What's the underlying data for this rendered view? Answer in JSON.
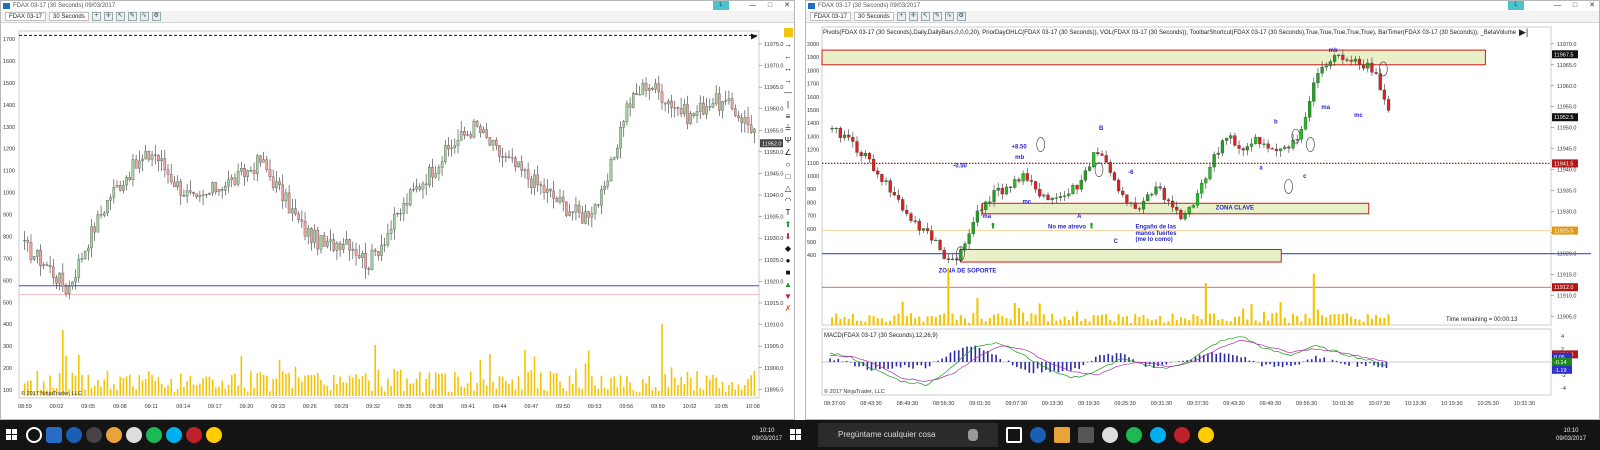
{
  "left_window": {
    "title": "FDAX 03-17 (30 Seconds)  09/03/2017",
    "tab_tag": "L",
    "instrument": "FDAX 03-17",
    "period": "30 Seconds",
    "copyright": "© 2017 NinjaTrader, LLC",
    "left_axis": [
      "1700",
      "1600",
      "1500",
      "1400",
      "1300",
      "1200",
      "1100",
      "1000",
      "900",
      "800",
      "700",
      "600",
      "500",
      "400",
      "300",
      "200",
      "100"
    ],
    "price_axis": [
      "11975.0",
      "11970.0",
      "11965.0",
      "11960.0",
      "11955.0",
      "11950.0",
      "11945.0",
      "11940.0",
      "11935.0",
      "11930.0",
      "11925.0",
      "11920.0",
      "11915.0",
      "11910.0",
      "11905.0",
      "11900.0",
      "11895.0"
    ],
    "time_axis": [
      "08:59",
      "09:02",
      "09:05",
      "09:08",
      "09:11",
      "09:14",
      "09:17",
      "09:20",
      "09:23",
      "09:26",
      "09:29",
      "09:32",
      "09:35",
      "09:38",
      "09:41",
      "09:44",
      "09:47",
      "09:50",
      "09:53",
      "09:56",
      "09:59",
      "10:02",
      "10:05",
      "10:08"
    ],
    "last_price": "11952.0"
  },
  "right_window": {
    "title": "FDAX 03-17 (30 Seconds)  09/03/2017",
    "tab_tag": "L",
    "instrument": "FDAX 03-17",
    "period": "30 Seconds",
    "indicators": "Pivots(FDAX 03-17 (30 Seconds),Daily,DailyBars,0,0,0,20), PriorDayOHLC(FDAX 03-17 (30 Seconds)), VOL(FDAX 03-17 (30 Seconds)), ToolbarShortcut(FDAX 03-17 (30 Seconds),True,True,True,True,True), BarTimer(FDAX 03-17 (30 Seconds)), _BetaVolume",
    "left_axis": [
      "2000",
      "1900",
      "1800",
      "1700",
      "1600",
      "1500",
      "1400",
      "1300",
      "1200",
      "1100",
      "1000",
      "900",
      "800",
      "700",
      "600",
      "500",
      "400"
    ],
    "price_axis": [
      "11970.0",
      "11965.0",
      "11960.0",
      "11955.0",
      "11950.0",
      "11945.0",
      "11940.0",
      "11935.0",
      "11930.0",
      "11925.0",
      "11920.0",
      "11915.0",
      "11910.0",
      "11905.0"
    ],
    "price_badges": [
      {
        "text": "11967.5",
        "color": "#111111"
      },
      {
        "text": "11952.5",
        "color": "#111111"
      },
      {
        "text": "11941.5",
        "color": "#b01818"
      },
      {
        "text": "11925.5",
        "color": "#e09a12"
      },
      {
        "text": "11912.0",
        "color": "#b01818"
      },
      {
        "text": "11896.0",
        "color": "#b01818"
      }
    ],
    "time_axis": [
      "08:37:00",
      "08:43:30",
      "08:49:30",
      "08:56:30",
      "09:01:30",
      "09:07:30",
      "09:13:30",
      "09:19:30",
      "09:25:30",
      "09:31:30",
      "09:37:30",
      "09:43:30",
      "09:49:30",
      "09:56:30",
      "10:01:30",
      "10:07:30",
      "10:13:30",
      "10:19:30",
      "10:25:30",
      "10:31:30"
    ],
    "annotations": {
      "support_zone": "ZONA DE SOPORTE",
      "key_zone": "ZONA CLAVE",
      "no_me_atrevo": "No me atrevo",
      "engano": "Engaño de las",
      "engano2": "manos fuertes",
      "engano3": "(me lo como)",
      "plus_850": "+8.50",
      "minus_050": "-0.50",
      "minus_6": "-6",
      "mb1": "mb",
      "mc1": "mc",
      "ma1": "ma",
      "A": "A",
      "B": "B",
      "C": "C",
      "a": "a",
      "b": "b",
      "c": "c",
      "mb2": "mb",
      "ma2": "ma",
      "mc2": "mc",
      "s1": "S1"
    },
    "time_remaining": "Time remaining = 00:00:13",
    "macd_title": "MACD(FDAX 03-17 (30 Seconds),12,26,9)",
    "macd_axis": [
      "4",
      "2",
      "0",
      "-2",
      "-4"
    ],
    "macd_badges": [
      {
        "text": "0.05",
        "color": "#2f2fc9"
      },
      {
        "text": "-0.14",
        "color": "#1a8a1a"
      },
      {
        "text": "-1.19",
        "color": "#2f2fc9"
      }
    ],
    "copyright": "© 2017 NinjaTrader, LLC"
  },
  "taskbar": {
    "search_placeholder": "Pregúntame cualquier cosa",
    "clock_left_time": "10:10",
    "clock_left_date": "09/03/2017",
    "clock_right_time": "10:10",
    "clock_right_date": "09/03/2017"
  }
}
